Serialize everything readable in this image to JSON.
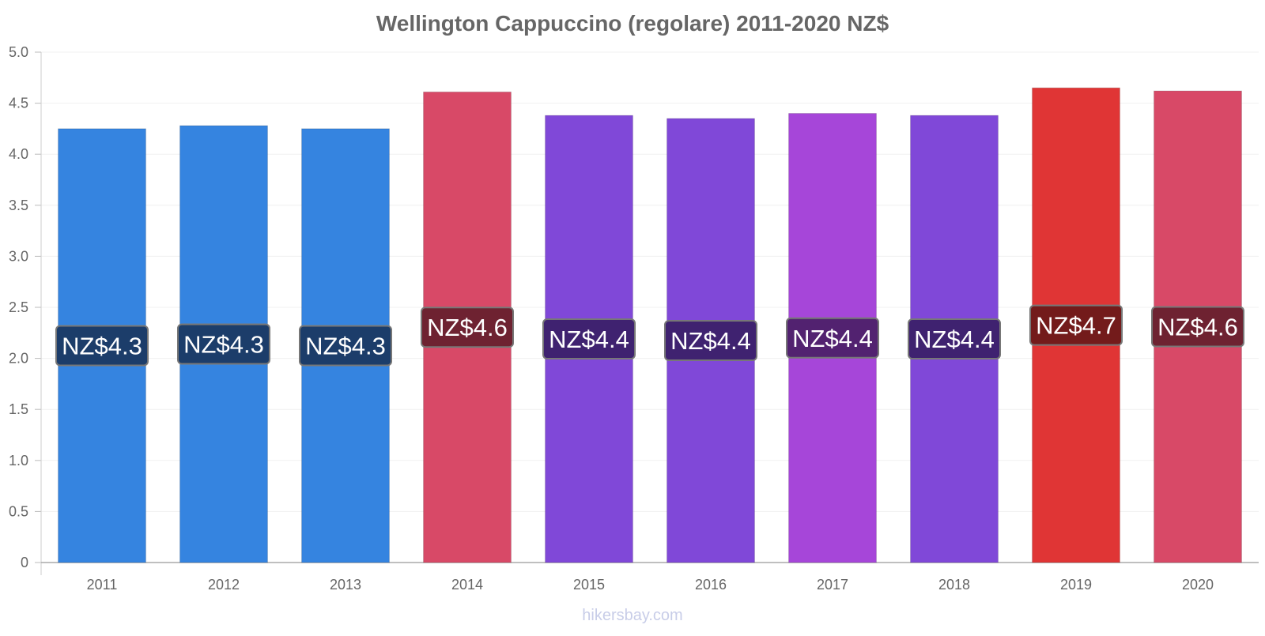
{
  "chart_data": {
    "type": "bar",
    "title": "Wellington Cappuccino (regolare) 2011-2020 NZ$",
    "xlabel": "",
    "ylabel": "",
    "ylim": [
      0,
      5.0
    ],
    "y_ticks": [
      "0",
      "0.5",
      "1.0",
      "1.5",
      "2.0",
      "2.5",
      "3.0",
      "3.5",
      "4.0",
      "4.5",
      "5.0"
    ],
    "categories": [
      "2011",
      "2012",
      "2013",
      "2014",
      "2015",
      "2016",
      "2017",
      "2018",
      "2019",
      "2020"
    ],
    "values": [
      4.25,
      4.28,
      4.25,
      4.61,
      4.38,
      4.35,
      4.4,
      4.38,
      4.65,
      4.62
    ],
    "data_labels": [
      "NZ$4.3",
      "NZ$4.3",
      "NZ$4.3",
      "NZ$4.6",
      "NZ$4.4",
      "NZ$4.4",
      "NZ$4.4",
      "NZ$4.4",
      "NZ$4.7",
      "NZ$4.6"
    ],
    "bar_colors": [
      "#3584e0",
      "#3584e0",
      "#3584e0",
      "#d84967",
      "#8048d8",
      "#8048d8",
      "#a646d9",
      "#8048d8",
      "#e03535",
      "#d84967"
    ],
    "label_colors": [
      "#1c3d6a",
      "#1c3d6a",
      "#1c3d6a",
      "#6e2231",
      "#3f2270",
      "#3f2270",
      "#522270",
      "#3f2270",
      "#731b1b",
      "#6e2231"
    ],
    "grid": true,
    "legend": "none"
  },
  "watermark": "hikersbay.com"
}
